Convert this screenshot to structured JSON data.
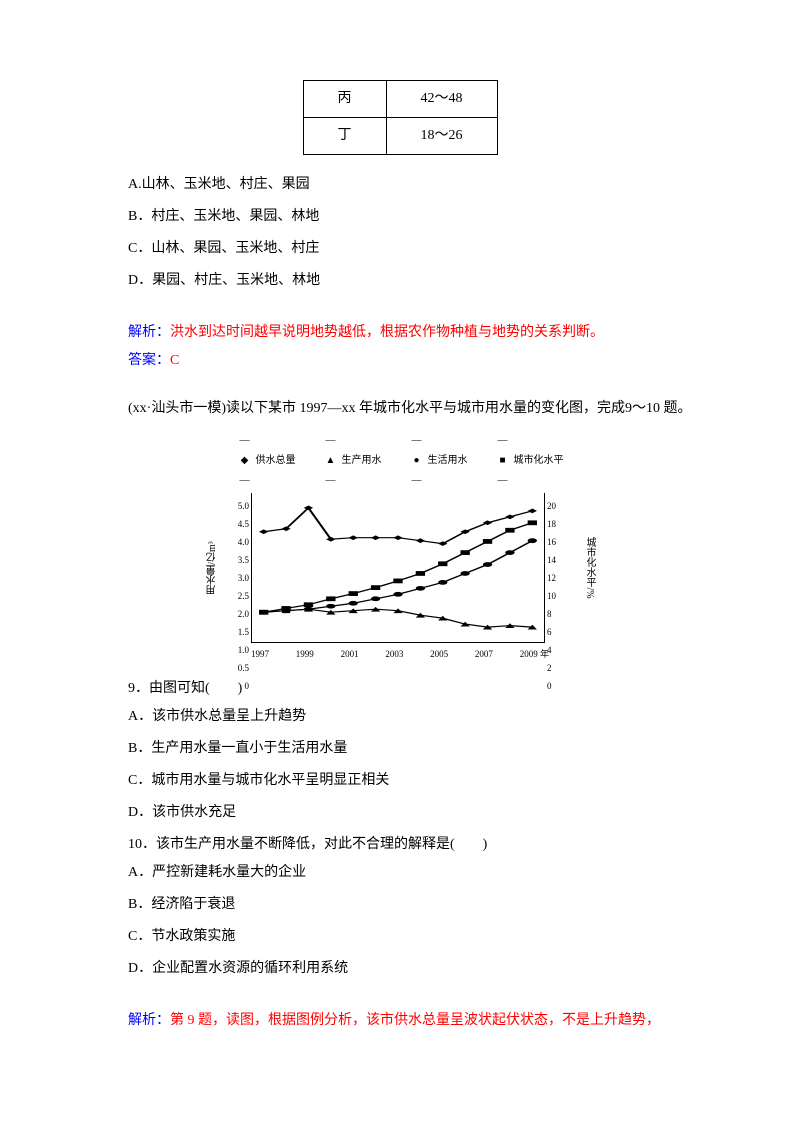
{
  "table": {
    "rows": [
      {
        "label": "丙",
        "value": "42～48"
      },
      {
        "label": "丁",
        "value": "18～26"
      }
    ]
  },
  "q8": {
    "options": {
      "a": "A.山林、玉米地、村庄、果园",
      "b": "B．村庄、玉米地、果园、林地",
      "c": "C．山林、果园、玉米地、村庄",
      "d": "D．果园、村庄、玉米地、林地"
    },
    "analysis_label": "解析：",
    "analysis_text": "洪水到达时间越早说明地势越低，根据农作物种植与地势的关系判断。",
    "answer_label": "答案：",
    "answer_text": "C"
  },
  "intro": "(xx·汕头市一模)读以下某市 1997—xx 年城市化水平与城市用水量的变化图，完成9～10 题。",
  "chart": {
    "legend": [
      "供水总量",
      "生产用水",
      "生活用水",
      "城市化水平"
    ],
    "y_left_label": "用水量/亿m³",
    "y_right_label": "城市化水平/%",
    "y_left_ticks": [
      "5.0",
      "4.5",
      "4.0",
      "3.5",
      "3.0",
      "2.5",
      "2.0",
      "1.5",
      "1.0",
      "0.5",
      "0"
    ],
    "y_right_ticks": [
      "20",
      "18",
      "16",
      "14",
      "12",
      "10",
      "8",
      "6",
      "4",
      "2",
      "0"
    ],
    "x_ticks": [
      "1997",
      "1999",
      "2001",
      "2003",
      "2005",
      "2007",
      "2009 年"
    ],
    "colors": {
      "line": "#000000",
      "bg": "#ffffff"
    },
    "series": {
      "supply": {
        "y": [
          3.7,
          3.8,
          4.5,
          3.45,
          3.5,
          3.5,
          3.5,
          3.4,
          3.3,
          3.7,
          4.0,
          4.2,
          4.4
        ],
        "marker": "diamond"
      },
      "prod": {
        "y": [
          1.0,
          1.05,
          1.1,
          1.0,
          1.05,
          1.1,
          1.05,
          0.9,
          0.8,
          0.6,
          0.5,
          0.55,
          0.5
        ],
        "marker": "triangle"
      },
      "life": {
        "y": [
          1.0,
          1.05,
          1.1,
          1.2,
          1.3,
          1.45,
          1.6,
          1.8,
          2.0,
          2.3,
          2.6,
          3.0,
          3.4
        ],
        "marker": "circle"
      },
      "urban": {
        "y": [
          4,
          4.5,
          5,
          5.8,
          6.5,
          7.3,
          8.2,
          9.2,
          10.5,
          12,
          13.5,
          15,
          16
        ],
        "max": 20,
        "marker": "square"
      }
    }
  },
  "q9": {
    "stem": "9．由图可知(　　)",
    "options": {
      "a": "A．该市供水总量呈上升趋势",
      "b": "B．生产用水量一直小于生活用水量",
      "c": "C．城市用水量与城市化水平呈明显正相关",
      "d": "D．该市供水充足"
    }
  },
  "q10": {
    "stem": "10．该市生产用水量不断降低，对此不合理的解释是(　　)",
    "options": {
      "a": "A．严控新建耗水量大的企业",
      "b": "B．经济陷于衰退",
      "c": "C．节水政策实施",
      "d": "D．企业配置水资源的循环利用系统"
    }
  },
  "final": {
    "analysis_label": "解析：",
    "analysis_text": "第 9 题，读图，根据图例分析，该市供水总量呈波状起伏状态，不是上升趋势，"
  }
}
